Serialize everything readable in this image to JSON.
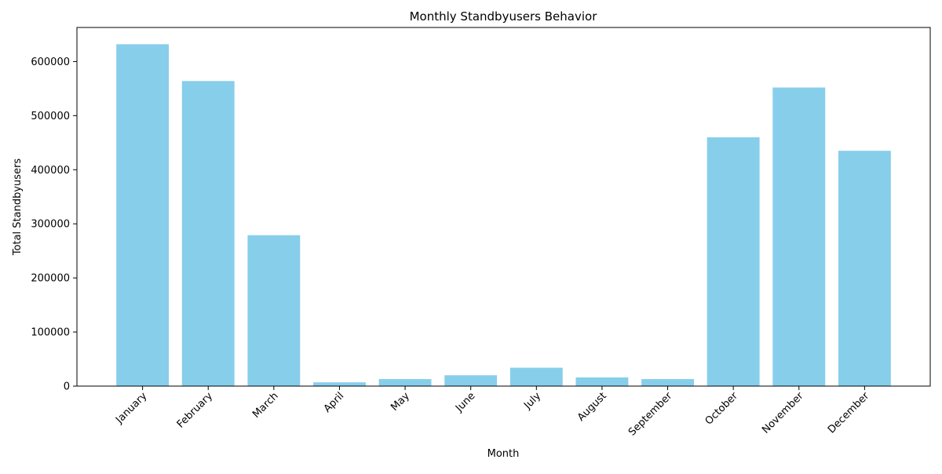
{
  "chart_data": {
    "type": "bar",
    "title": "Monthly Standbyusers Behavior",
    "xlabel": "Month",
    "ylabel": "Total Standbyusers",
    "categories": [
      "January",
      "February",
      "March",
      "April",
      "May",
      "June",
      "July",
      "August",
      "September",
      "October",
      "November",
      "December"
    ],
    "values": [
      632000,
      564000,
      279000,
      7000,
      13000,
      20000,
      34000,
      16000,
      13000,
      460000,
      552000,
      435000
    ],
    "ylim": [
      0,
      663000
    ],
    "yticks": [
      0,
      100000,
      200000,
      300000,
      400000,
      500000,
      600000
    ],
    "ytick_labels": [
      "0",
      "100000",
      "200000",
      "300000",
      "400000",
      "500000",
      "600000"
    ],
    "bar_color": "#87ceeb",
    "grid": false,
    "legend": "none",
    "xtick_rotation": 45
  }
}
